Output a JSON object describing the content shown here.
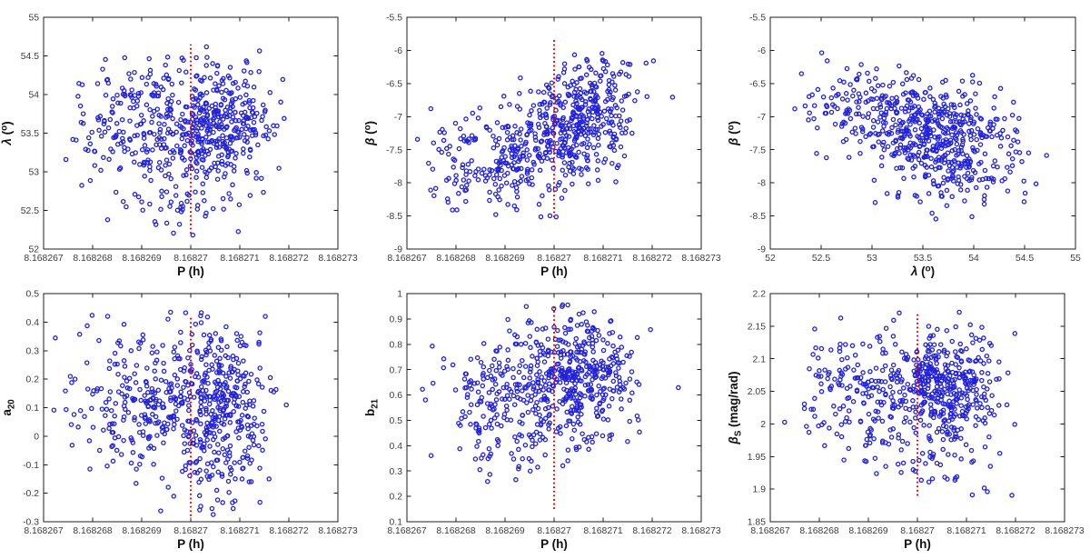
{
  "figure": {
    "background": "#ffffff",
    "marker": {
      "shape": "open-circle",
      "color": "#2222dd",
      "radius": 2.1,
      "stroke_width": 1.3
    },
    "axis": {
      "line_color": "#1c1c1c",
      "tick_color": "#1c1c1c",
      "tick_label_color": "#3c3c3c",
      "label_color": "#111111",
      "tick_len": 4.5,
      "box": true
    },
    "ref_line_style": {
      "color": "#ff0000",
      "width": 2,
      "dash": "1.8 2.8",
      "style": "dotted"
    }
  },
  "chart_data": [
    {
      "id": "lambda-vs-p",
      "type": "scatter",
      "row": 0,
      "col": 0,
      "xlabel": [
        {
          "t": "P (h)"
        }
      ],
      "ylabel": [
        {
          "t": "λ",
          "i": 1
        },
        {
          "t": " ("
        },
        {
          "t": "o",
          "sup": 1
        },
        {
          "t": ")"
        }
      ],
      "xlim": [
        8.168267,
        8.168273
      ],
      "ylim": [
        52,
        55
      ],
      "xticks": [
        {
          "v": 8.168267,
          "l": "8.168267"
        },
        {
          "v": 8.168268,
          "l": "8.168268"
        },
        {
          "v": 8.168269,
          "l": "8.168269"
        },
        {
          "v": 8.16827,
          "l": "8.16827"
        },
        {
          "v": 8.168271,
          "l": "8.168271"
        },
        {
          "v": 8.168272,
          "l": "8.168272"
        },
        {
          "v": 8.168273,
          "l": "8.168273"
        }
      ],
      "yticks": [
        {
          "v": 52,
          "l": "52"
        },
        {
          "v": 52.5,
          "l": "52.5"
        },
        {
          "v": 53,
          "l": "53"
        },
        {
          "v": 53.5,
          "l": "53.5"
        },
        {
          "v": 54,
          "l": "54"
        },
        {
          "v": 54.5,
          "l": "54.5"
        },
        {
          "v": 55,
          "l": "55"
        }
      ],
      "ref_line": {
        "x": 8.16827,
        "from": 52.2,
        "to": 54.65
      },
      "n_points": 620,
      "seed": 101,
      "clip": {
        "x": [
          8.1682672,
          8.1682729
        ],
        "y": [
          52.18,
          54.72
        ]
      },
      "clusters": [
        {
          "w": 0.52,
          "mx": 8.1682706,
          "sx": 5.2e-07,
          "my": 53.63,
          "sy": 0.36,
          "rho": 0
        },
        {
          "w": 0.42,
          "mx": 8.1682692,
          "sx": 8.2e-07,
          "my": 53.55,
          "sy": 0.44,
          "rho": 0
        },
        {
          "w": 0.06,
          "mx": 8.1682698,
          "sx": 5e-07,
          "my": 52.68,
          "sy": 0.26,
          "rho": 0
        }
      ]
    },
    {
      "id": "beta-vs-p",
      "type": "scatter",
      "row": 0,
      "col": 1,
      "xlabel": [
        {
          "t": "P (h)"
        }
      ],
      "ylabel": [
        {
          "t": "β",
          "i": 1
        },
        {
          "t": " ("
        },
        {
          "t": "o",
          "sup": 1
        },
        {
          "t": ")"
        }
      ],
      "xlim": [
        8.168267,
        8.168273
      ],
      "ylim": [
        -9,
        -5.5
      ],
      "xticks": [
        {
          "v": 8.168267,
          "l": "8.168267"
        },
        {
          "v": 8.168268,
          "l": "8.168268"
        },
        {
          "v": 8.168269,
          "l": "8.168269"
        },
        {
          "v": 8.16827,
          "l": "8.16827"
        },
        {
          "v": 8.168271,
          "l": "8.168271"
        },
        {
          "v": 8.168272,
          "l": "8.168272"
        },
        {
          "v": 8.168273,
          "l": "8.168273"
        }
      ],
      "yticks": [
        {
          "v": -9,
          "l": "-9"
        },
        {
          "v": -8.5,
          "l": "-8.5"
        },
        {
          "v": -8,
          "l": "-8"
        },
        {
          "v": -7.5,
          "l": "-7.5"
        },
        {
          "v": -7,
          "l": "-7"
        },
        {
          "v": -6.5,
          "l": "-6.5"
        },
        {
          "v": -6,
          "l": "-6"
        },
        {
          "v": -5.5,
          "l": "-5.5"
        }
      ],
      "ref_line": {
        "x": 8.16827,
        "from": -8.52,
        "to": -5.82
      },
      "n_points": 620,
      "seed": 202,
      "clip": {
        "x": [
          8.1682672,
          8.1682729
        ],
        "y": [
          -8.54,
          -5.79
        ]
      },
      "clusters": [
        {
          "w": 0.55,
          "mx": 8.1682706,
          "sx": 5.2e-07,
          "my": -7.02,
          "sy": 0.4,
          "rho": 0.25
        },
        {
          "w": 0.45,
          "mx": 8.1682691,
          "sx": 8.2e-07,
          "my": -7.62,
          "sy": 0.48,
          "rho": 0.3
        }
      ]
    },
    {
      "id": "beta-vs-lambda",
      "type": "scatter",
      "row": 0,
      "col": 2,
      "xlabel": [
        {
          "t": "λ",
          "i": 1
        },
        {
          "t": " ("
        },
        {
          "t": "o",
          "sup": 1
        },
        {
          "t": ")"
        }
      ],
      "ylabel": [
        {
          "t": "β",
          "i": 1
        },
        {
          "t": " ("
        },
        {
          "t": "o",
          "sup": 1
        },
        {
          "t": ")"
        }
      ],
      "xlim": [
        52,
        55
      ],
      "ylim": [
        -9,
        -5.5
      ],
      "xticks": [
        {
          "v": 52,
          "l": "52"
        },
        {
          "v": 52.5,
          "l": "52.5"
        },
        {
          "v": 53,
          "l": "53"
        },
        {
          "v": 53.5,
          "l": "53.5"
        },
        {
          "v": 54,
          "l": "54"
        },
        {
          "v": 54.5,
          "l": "54.5"
        },
        {
          "v": 55,
          "l": "55"
        }
      ],
      "yticks": [
        {
          "v": -9,
          "l": "-9"
        },
        {
          "v": -8.5,
          "l": "-8.5"
        },
        {
          "v": -8,
          "l": "-8"
        },
        {
          "v": -7.5,
          "l": "-7.5"
        },
        {
          "v": -7,
          "l": "-7"
        },
        {
          "v": -6.5,
          "l": "-6.5"
        },
        {
          "v": -6,
          "l": "-6"
        },
        {
          "v": -5.5,
          "l": "-5.5"
        }
      ],
      "ref_line": null,
      "n_points": 620,
      "seed": 303,
      "clip": {
        "x": [
          52.2,
          54.73
        ],
        "y": [
          -8.55,
          -5.78
        ]
      },
      "clusters": [
        {
          "w": 0.76,
          "mx": 53.62,
          "sx": 0.38,
          "my": -7.22,
          "sy": 0.38,
          "rho": -0.25
        },
        {
          "w": 0.12,
          "mx": 52.7,
          "sx": 0.28,
          "my": -6.8,
          "sy": 0.3,
          "rho": 0
        },
        {
          "w": 0.12,
          "mx": 53.85,
          "sx": 0.38,
          "my": -8.0,
          "sy": 0.27,
          "rho": 0
        }
      ]
    },
    {
      "id": "a20-vs-p",
      "type": "scatter",
      "row": 1,
      "col": 0,
      "xlabel": [
        {
          "t": "P (h)"
        }
      ],
      "ylabel": [
        {
          "t": "a"
        },
        {
          "t": "20",
          "sub": 1
        }
      ],
      "xlim": [
        8.168267,
        8.168273
      ],
      "ylim": [
        -0.3,
        0.5
      ],
      "xticks": [
        {
          "v": 8.168267,
          "l": "8.168267"
        },
        {
          "v": 8.168268,
          "l": "8.168268"
        },
        {
          "v": 8.168269,
          "l": "8.168269"
        },
        {
          "v": 8.16827,
          "l": "8.16827"
        },
        {
          "v": 8.168271,
          "l": "8.168271"
        },
        {
          "v": 8.168272,
          "l": "8.168272"
        },
        {
          "v": 8.168273,
          "l": "8.168273"
        }
      ],
      "yticks": [
        {
          "v": -0.3,
          "l": "-0.3"
        },
        {
          "v": -0.2,
          "l": "-0.2"
        },
        {
          "v": -0.1,
          "l": "-0.1"
        },
        {
          "v": 0,
          "l": "0"
        },
        {
          "v": 0.1,
          "l": "0.1"
        },
        {
          "v": 0.2,
          "l": "0.2"
        },
        {
          "v": 0.3,
          "l": "0.3"
        },
        {
          "v": 0.4,
          "l": "0.4"
        },
        {
          "v": 0.5,
          "l": "0.5"
        }
      ],
      "ref_line": {
        "x": 8.16827,
        "from": -0.28,
        "to": 0.42
      },
      "n_points": 620,
      "seed": 404,
      "clip": {
        "x": [
          8.1682672,
          8.1682729
        ],
        "y": [
          -0.285,
          0.44
        ]
      },
      "clusters": [
        {
          "w": 0.55,
          "mx": 8.1682706,
          "sx": 5.2e-07,
          "my": 0.1,
          "sy": 0.17,
          "rho": -0.08
        },
        {
          "w": 0.45,
          "mx": 8.1682692,
          "sx": 8.2e-07,
          "my": 0.13,
          "sy": 0.135,
          "rho": 0
        }
      ]
    },
    {
      "id": "b21-vs-p",
      "type": "scatter",
      "row": 1,
      "col": 1,
      "xlabel": [
        {
          "t": "P (h)"
        }
      ],
      "ylabel": [
        {
          "t": "b"
        },
        {
          "t": "21",
          "sub": 1
        }
      ],
      "xlim": [
        8.168267,
        8.168273
      ],
      "ylim": [
        0.1,
        1
      ],
      "xticks": [
        {
          "v": 8.168267,
          "l": "8.168267"
        },
        {
          "v": 8.168268,
          "l": "8.168268"
        },
        {
          "v": 8.168269,
          "l": "8.168269"
        },
        {
          "v": 8.16827,
          "l": "8.16827"
        },
        {
          "v": 8.168271,
          "l": "8.168271"
        },
        {
          "v": 8.168272,
          "l": "8.168272"
        },
        {
          "v": 8.168273,
          "l": "8.168273"
        }
      ],
      "yticks": [
        {
          "v": 0.1,
          "l": "0.1"
        },
        {
          "v": 0.2,
          "l": "0.2"
        },
        {
          "v": 0.3,
          "l": "0.3"
        },
        {
          "v": 0.4,
          "l": "0.4"
        },
        {
          "v": 0.5,
          "l": "0.5"
        },
        {
          "v": 0.6,
          "l": "0.6"
        },
        {
          "v": 0.7,
          "l": "0.7"
        },
        {
          "v": 0.8,
          "l": "0.8"
        },
        {
          "v": 0.9,
          "l": "0.9"
        },
        {
          "v": 1,
          "l": "1"
        }
      ],
      "ref_line": {
        "x": 8.16827,
        "from": 0.15,
        "to": 0.95
      },
      "n_points": 620,
      "seed": 505,
      "clip": {
        "x": [
          8.1682672,
          8.1682729
        ],
        "y": [
          0.155,
          0.96
        ]
      },
      "clusters": [
        {
          "w": 0.55,
          "mx": 8.1682706,
          "sx": 5.2e-07,
          "my": 0.7,
          "sy": 0.125,
          "rho": -0.08
        },
        {
          "w": 0.45,
          "mx": 8.1682692,
          "sx": 8.2e-07,
          "my": 0.565,
          "sy": 0.13,
          "rho": 0
        }
      ]
    },
    {
      "id": "betaS-vs-p",
      "type": "scatter",
      "row": 1,
      "col": 2,
      "xlabel": [
        {
          "t": "P (h)"
        }
      ],
      "ylabel": [
        {
          "t": "β",
          "i": 1
        },
        {
          "t": "S",
          "sub": 1
        },
        {
          "t": " (mag/rad)"
        }
      ],
      "xlim": [
        8.168267,
        8.168273
      ],
      "ylim": [
        1.85,
        2.2
      ],
      "xticks": [
        {
          "v": 8.168267,
          "l": "8.168267"
        },
        {
          "v": 8.168268,
          "l": "8.168268"
        },
        {
          "v": 8.168269,
          "l": "8.168269"
        },
        {
          "v": 8.16827,
          "l": "8.16827"
        },
        {
          "v": 8.168271,
          "l": "8.168271"
        },
        {
          "v": 8.168272,
          "l": "8.168272"
        },
        {
          "v": 8.168273,
          "l": "8.168273"
        }
      ],
      "yticks": [
        {
          "v": 1.85,
          "l": "1.85"
        },
        {
          "v": 1.9,
          "l": "1.9"
        },
        {
          "v": 1.95,
          "l": "1.95"
        },
        {
          "v": 2,
          "l": "2"
        },
        {
          "v": 2.05,
          "l": "2.05"
        },
        {
          "v": 2.1,
          "l": "2.1"
        },
        {
          "v": 2.15,
          "l": "2.15"
        },
        {
          "v": 2.2,
          "l": "2.2"
        }
      ],
      "ref_line": {
        "x": 8.16827,
        "from": 1.89,
        "to": 2.17
      },
      "n_points": 620,
      "seed": 606,
      "clip": {
        "x": [
          8.1682672,
          8.1682729
        ],
        "y": [
          1.888,
          2.172
        ]
      },
      "clusters": [
        {
          "w": 0.52,
          "mx": 8.1682706,
          "sx": 5.2e-07,
          "my": 2.06,
          "sy": 0.042,
          "rho": 0
        },
        {
          "w": 0.41,
          "mx": 8.1682692,
          "sx": 8.2e-07,
          "my": 2.045,
          "sy": 0.05,
          "rho": 0
        },
        {
          "w": 0.07,
          "mx": 8.1682706,
          "sx": 5.5e-07,
          "my": 1.935,
          "sy": 0.028,
          "rho": 0
        }
      ]
    }
  ]
}
